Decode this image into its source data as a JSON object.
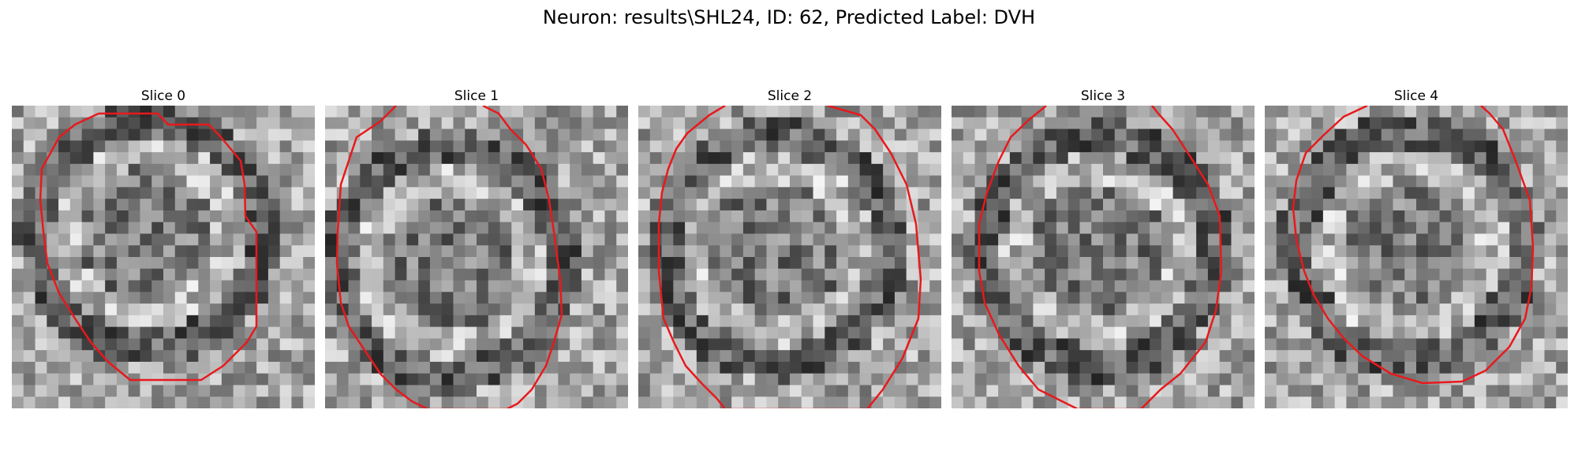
{
  "figure": {
    "title": "Neuron: results\\SHL24, ID: 62, Predicted Label: DVH"
  },
  "panels": [
    {
      "title": "Slice 0"
    },
    {
      "title": "Slice 1"
    },
    {
      "title": "Slice 2"
    },
    {
      "title": "Slice 3"
    },
    {
      "title": "Slice 4"
    }
  ],
  "colors": {
    "contour": "#e8191c",
    "background": "#ffffff"
  }
}
